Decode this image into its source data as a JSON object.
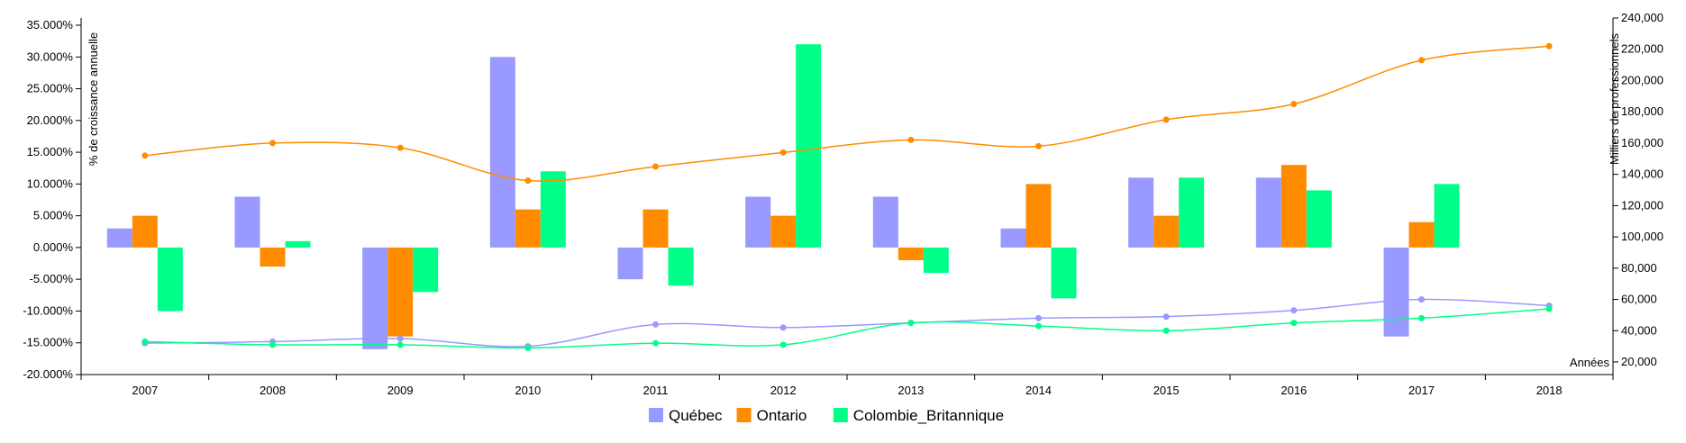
{
  "chart_data": {
    "type": "bar+line",
    "categories": [
      "2007",
      "2008",
      "2009",
      "2010",
      "2011",
      "2012",
      "2013",
      "2014",
      "2015",
      "2016",
      "2017",
      "2018"
    ],
    "xlabel": "Années",
    "ylabel_left": "% de croissance annuelle",
    "ylabel_right": "Milliers de professionnels",
    "ylim_left": [
      -20,
      35
    ],
    "ylim_right": [
      20000,
      240000
    ],
    "left_ticks": [
      {
        "value": 35,
        "label": "35.000%"
      },
      {
        "value": 30,
        "label": "30.000%"
      },
      {
        "value": 25,
        "label": "25.000%"
      },
      {
        "value": 20,
        "label": "20.000%"
      },
      {
        "value": 15,
        "label": "15.000%"
      },
      {
        "value": 10,
        "label": "10.000%"
      },
      {
        "value": 5,
        "label": "5.000%"
      },
      {
        "value": 0,
        "label": "0.000%"
      },
      {
        "value": -5,
        "label": "-5.000%"
      },
      {
        "value": -10,
        "label": "-10.000%"
      },
      {
        "value": -15,
        "label": "-15.000%"
      },
      {
        "value": -20,
        "label": "-20.000%"
      }
    ],
    "right_ticks": [
      {
        "value": 240000,
        "label": "240,000"
      },
      {
        "value": 220000,
        "label": "220,000"
      },
      {
        "value": 200000,
        "label": "200,000"
      },
      {
        "value": 180000,
        "label": "180,000"
      },
      {
        "value": 160000,
        "label": "160,000"
      },
      {
        "value": 140000,
        "label": "140,000"
      },
      {
        "value": 120000,
        "label": "120,000"
      },
      {
        "value": 100000,
        "label": "100,000"
      },
      {
        "value": 80000,
        "label": "80,000"
      },
      {
        "value": 60000,
        "label": "60,000"
      },
      {
        "value": 40000,
        "label": "40,000"
      },
      {
        "value": 20000,
        "label": "20,000"
      }
    ],
    "series": [
      {
        "name": "Québec",
        "color": "#9999ff",
        "growth": [
          3,
          8,
          -16,
          30,
          -5,
          8,
          8,
          3,
          11,
          11,
          -14,
          null
        ],
        "level": [
          32000,
          33000,
          35000,
          30000,
          44000,
          42000,
          45000,
          48000,
          49000,
          53000,
          60000,
          56000
        ]
      },
      {
        "name": "Ontario",
        "color": "#ff8c00",
        "growth": [
          5,
          -3,
          -14,
          6,
          6,
          5,
          -2,
          10,
          5,
          13,
          4,
          null
        ],
        "level": [
          152000,
          160000,
          157000,
          136000,
          145000,
          154000,
          162000,
          158000,
          175000,
          185000,
          213000,
          222000
        ]
      },
      {
        "name": "Colombie_Britannique",
        "color": "#00ff88",
        "growth": [
          -10,
          1,
          -7,
          12,
          -6,
          32,
          -4,
          -8,
          11,
          9,
          10,
          null
        ],
        "level": [
          33000,
          31000,
          31000,
          29000,
          32000,
          31000,
          45000,
          43000,
          40000,
          45000,
          48000,
          54000
        ]
      }
    ],
    "legend_position": "bottom",
    "grid": false
  }
}
